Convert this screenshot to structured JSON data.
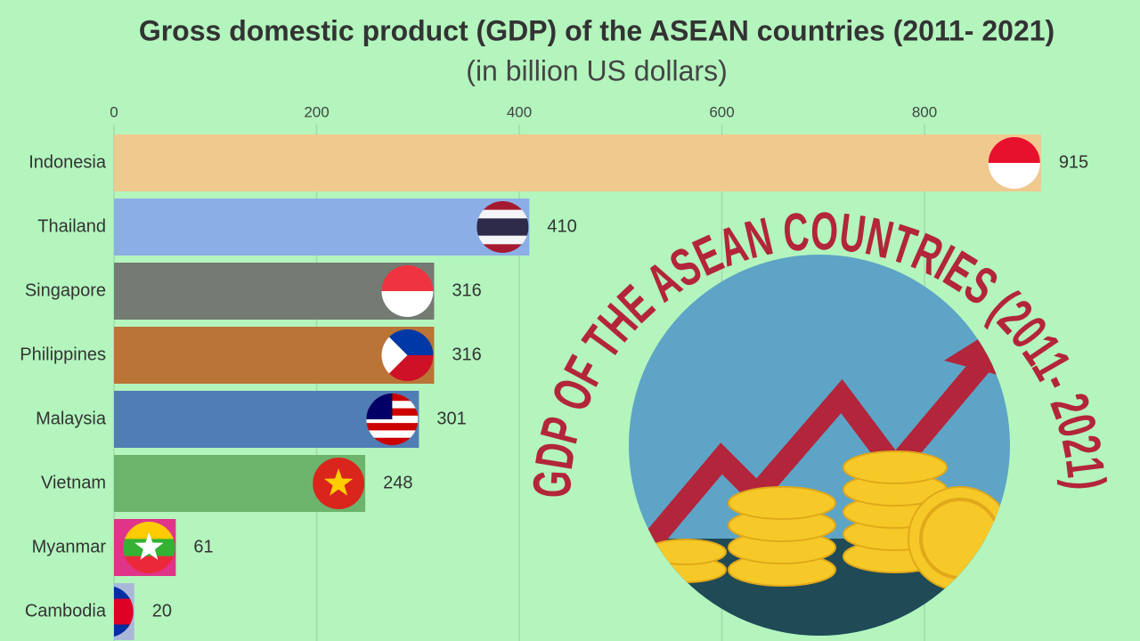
{
  "chart_data": {
    "type": "bar",
    "orientation": "horizontal",
    "title": "Gross domestic product (GDP) of the ASEAN countries (2011- 2021)",
    "subtitle": "(in billion US dollars)",
    "annotation": "GDP OF THE ASEAN COUNTRIES (2011- 2021)",
    "categories": [
      "Indonesia",
      "Thailand",
      "Singapore",
      "Philippines",
      "Malaysia",
      "Vietnam",
      "Myanmar",
      "Cambodia"
    ],
    "values": [
      915,
      410,
      316,
      316,
      301,
      248,
      61,
      20
    ],
    "colors": [
      "#f0c98f",
      "#8caee6",
      "#737b73",
      "#b97436",
      "#4f7db5",
      "#6cb46c",
      "#e0338a",
      "#aab8d8"
    ],
    "xlim": [
      0,
      960
    ],
    "xticks": [
      0,
      200,
      400,
      600,
      800
    ],
    "grid": true
  }
}
